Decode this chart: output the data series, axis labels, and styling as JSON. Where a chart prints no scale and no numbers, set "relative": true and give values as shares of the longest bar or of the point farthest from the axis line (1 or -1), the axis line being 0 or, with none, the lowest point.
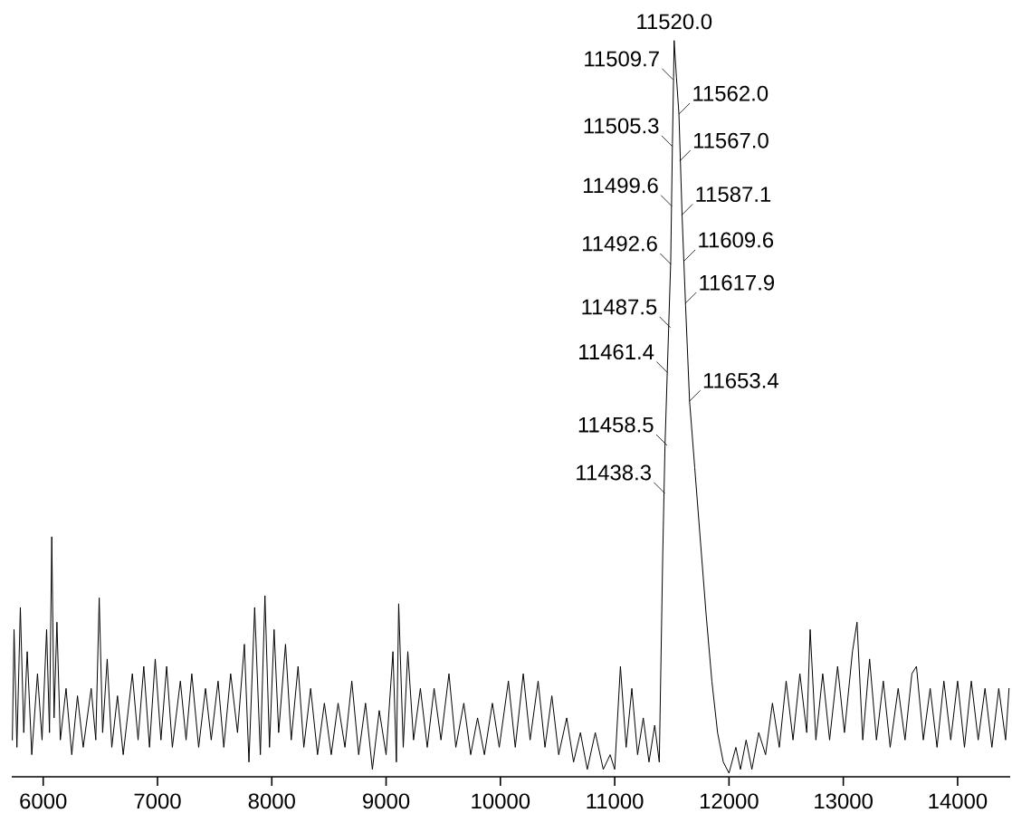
{
  "chart_data": {
    "type": "line",
    "relative": true,
    "xlim": [
      5725,
      14460
    ],
    "xticks": [
      6000,
      7000,
      8000,
      9000,
      10000,
      11000,
      12000,
      13000,
      14000
    ],
    "marker": "none",
    "line_style": "solid",
    "series": [
      {
        "color": "#000000",
        "x": [
          5730,
          5745,
          5770,
          5800,
          5830,
          5860,
          5900,
          5950,
          5990,
          6030,
          6055,
          6075,
          6095,
          6120,
          6150,
          6200,
          6250,
          6300,
          6350,
          6420,
          6460,
          6490,
          6520,
          6560,
          6600,
          6650,
          6700,
          6780,
          6830,
          6880,
          6930,
          6980,
          7030,
          7080,
          7130,
          7200,
          7250,
          7300,
          7360,
          7420,
          7470,
          7530,
          7580,
          7640,
          7700,
          7760,
          7800,
          7850,
          7900,
          7940,
          7980,
          8020,
          8060,
          8120,
          8170,
          8230,
          8280,
          8340,
          8400,
          8460,
          8520,
          8580,
          8640,
          8700,
          8760,
          8820,
          8880,
          8940,
          9000,
          9060,
          9090,
          9110,
          9150,
          9190,
          9240,
          9300,
          9360,
          9420,
          9480,
          9550,
          9610,
          9680,
          9740,
          9800,
          9860,
          9930,
          9990,
          10070,
          10130,
          10200,
          10260,
          10330,
          10390,
          10450,
          10510,
          10580,
          10640,
          10700,
          10760,
          10830,
          10900,
          10960,
          11000,
          11050,
          11100,
          11150,
          11200,
          11250,
          11300,
          11350,
          11390,
          11420,
          11440,
          11460,
          11490,
          11505,
          11515,
          11520,
          11540,
          11562,
          11590,
          11620,
          11655,
          11700,
          11750,
          11800,
          11850,
          11900,
          11950,
          12000,
          12060,
          12100,
          12150,
          12200,
          12260,
          12320,
          12380,
          12440,
          12500,
          12560,
          12620,
          12680,
          12710,
          12760,
          12820,
          12880,
          12950,
          13010,
          13080,
          13120,
          13170,
          13230,
          13290,
          13350,
          13410,
          13480,
          13540,
          13600,
          13640,
          13700,
          13760,
          13820,
          13880,
          13940,
          14000,
          14060,
          14120,
          14180,
          14240,
          14300,
          14360,
          14420,
          14450
        ],
        "values": [
          0.05,
          0.2,
          0.04,
          0.23,
          0.06,
          0.17,
          0.03,
          0.14,
          0.05,
          0.2,
          0.06,
          0.326,
          0.08,
          0.21,
          0.05,
          0.12,
          0.03,
          0.11,
          0.04,
          0.12,
          0.05,
          0.243,
          0.06,
          0.16,
          0.04,
          0.11,
          0.03,
          0.14,
          0.05,
          0.15,
          0.04,
          0.16,
          0.05,
          0.15,
          0.04,
          0.13,
          0.05,
          0.14,
          0.04,
          0.12,
          0.05,
          0.13,
          0.04,
          0.14,
          0.06,
          0.18,
          0.02,
          0.23,
          0.03,
          0.246,
          0.04,
          0.2,
          0.06,
          0.18,
          0.05,
          0.15,
          0.04,
          0.12,
          0.03,
          0.1,
          0.03,
          0.1,
          0.04,
          0.13,
          0.03,
          0.1,
          0.01,
          0.09,
          0.03,
          0.17,
          0.02,
          0.235,
          0.04,
          0.17,
          0.05,
          0.12,
          0.04,
          0.12,
          0.05,
          0.14,
          0.04,
          0.1,
          0.03,
          0.08,
          0.03,
          0.1,
          0.04,
          0.13,
          0.04,
          0.14,
          0.05,
          0.13,
          0.04,
          0.11,
          0.03,
          0.08,
          0.02,
          0.06,
          0.01,
          0.06,
          0.01,
          0.03,
          0.01,
          0.15,
          0.04,
          0.12,
          0.03,
          0.08,
          0.02,
          0.07,
          0.02,
          0.3,
          0.45,
          0.55,
          0.7,
          0.86,
          0.95,
          1.0,
          0.95,
          0.9,
          0.76,
          0.64,
          0.51,
          0.42,
          0.32,
          0.22,
          0.13,
          0.06,
          0.02,
          0.005,
          0.04,
          0.01,
          0.05,
          0.01,
          0.06,
          0.03,
          0.1,
          0.04,
          0.13,
          0.05,
          0.14,
          0.06,
          0.2,
          0.05,
          0.14,
          0.05,
          0.15,
          0.06,
          0.17,
          0.21,
          0.05,
          0.16,
          0.05,
          0.13,
          0.04,
          0.12,
          0.05,
          0.14,
          0.15,
          0.05,
          0.12,
          0.04,
          0.13,
          0.05,
          0.13,
          0.04,
          0.13,
          0.05,
          0.12,
          0.04,
          0.12,
          0.05,
          0.12
        ]
      }
    ],
    "annotations": [
      {
        "text": "11520.0",
        "x": 11520.0,
        "y": 1.0
      },
      {
        "text": "11509.7",
        "x": 11509.7,
        "y": 0.947
      },
      {
        "text": "11562.0",
        "x": 11562.0,
        "y": 0.9
      },
      {
        "text": "11505.3",
        "x": 11505.3,
        "y": 0.856
      },
      {
        "text": "11567.0",
        "x": 11567.0,
        "y": 0.836
      },
      {
        "text": "11499.6",
        "x": 11499.6,
        "y": 0.775
      },
      {
        "text": "11587.1",
        "x": 11587.1,
        "y": 0.763
      },
      {
        "text": "11492.6",
        "x": 11492.6,
        "y": 0.696
      },
      {
        "text": "11609.6",
        "x": 11609.6,
        "y": 0.701
      },
      {
        "text": "11617.9",
        "x": 11617.9,
        "y": 0.643
      },
      {
        "text": "11487.5",
        "x": 11487.5,
        "y": 0.61
      },
      {
        "text": "11461.4",
        "x": 11461.4,
        "y": 0.549
      },
      {
        "text": "11653.4",
        "x": 11653.4,
        "y": 0.51
      },
      {
        "text": "11458.5",
        "x": 11458.5,
        "y": 0.45
      },
      {
        "text": "11438.3",
        "x": 11438.3,
        "y": 0.385
      }
    ]
  }
}
